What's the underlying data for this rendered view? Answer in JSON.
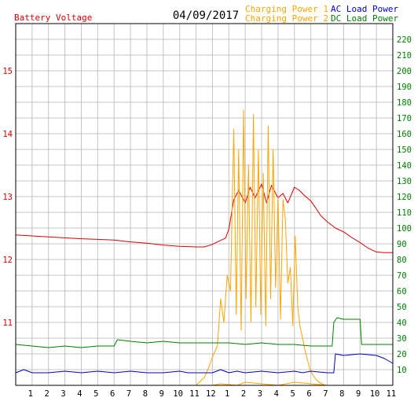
{
  "chart_data": {
    "type": "line",
    "title": "04/09/2017",
    "left_axis": {
      "label": "Battery Voltage",
      "color": "#dd0000",
      "range": [
        10.0,
        15.75
      ],
      "ticks": [
        11,
        12,
        13,
        14,
        15
      ]
    },
    "right_axis": {
      "color": "#008000",
      "range": [
        0,
        230
      ],
      "ticks": [
        10,
        20,
        30,
        40,
        50,
        60,
        70,
        80,
        90,
        100,
        110,
        120,
        130,
        140,
        150,
        160,
        170,
        180,
        190,
        200,
        210,
        220
      ]
    },
    "x_axis": {
      "range": [
        0,
        23
      ],
      "tick_labels": [
        "1",
        "2",
        "3",
        "4",
        "5",
        "6",
        "7",
        "8",
        "9",
        "10",
        "11",
        "12",
        "1",
        "2",
        "3",
        "4",
        "5",
        "6",
        "7",
        "8",
        "9",
        "10",
        "11"
      ]
    },
    "grid": true,
    "legend": [
      {
        "label": "Charging Power 1",
        "color": "#ffa500"
      },
      {
        "label": "AC Load Power",
        "color": "#0000cc"
      },
      {
        "label": "Charging Power 2",
        "color": "#ffa500"
      },
      {
        "label": "DC Load Power",
        "color": "#008000"
      }
    ],
    "series": [
      {
        "name": "Battery Voltage",
        "axis": "left",
        "color": "#dd0000",
        "x": [
          0,
          2,
          4,
          6,
          7,
          8,
          9,
          10,
          11,
          11.5,
          12,
          12.3,
          12.8,
          13,
          13.3,
          13.6,
          14,
          14.3,
          14.6,
          15,
          15.3,
          15.6,
          16,
          16.3,
          16.6,
          17,
          17.3,
          17.6,
          18,
          18.3,
          18.6,
          19,
          19.5,
          20,
          20.5,
          21,
          21.5,
          22,
          22.5,
          23
        ],
        "y": [
          12.39,
          12.36,
          12.33,
          12.31,
          12.28,
          12.26,
          12.23,
          12.21,
          12.2,
          12.2,
          12.24,
          12.28,
          12.34,
          12.48,
          12.95,
          13.1,
          12.9,
          13.15,
          12.98,
          13.2,
          12.9,
          13.18,
          12.98,
          13.05,
          12.9,
          13.15,
          13.1,
          13.02,
          12.93,
          12.82,
          12.7,
          12.6,
          12.5,
          12.44,
          12.35,
          12.27,
          12.18,
          12.12,
          12.11,
          12.11
        ]
      },
      {
        "name": "Charging Power 1",
        "axis": "right",
        "color": "#ffa500",
        "x": [
          0,
          11,
          11.2,
          11.5,
          11.8,
          12,
          12.3,
          12.5,
          12.7,
          12.9,
          13.1,
          13.3,
          13.45,
          13.6,
          13.75,
          13.9,
          14.05,
          14.2,
          14.35,
          14.5,
          14.65,
          14.8,
          14.95,
          15.1,
          15.25,
          15.4,
          15.55,
          15.7,
          15.85,
          16,
          16.15,
          16.3,
          16.45,
          16.6,
          16.75,
          16.9,
          17.05,
          17.2,
          17.35,
          17.5,
          17.65,
          17.8,
          17.95,
          18.1,
          18.3,
          18.5,
          18.7,
          18.9,
          19.1,
          19.3,
          23
        ],
        "y": [
          0,
          0,
          2,
          5,
          12,
          18,
          25,
          55,
          40,
          70,
          60,
          163,
          45,
          150,
          35,
          175,
          55,
          140,
          40,
          172,
          50,
          150,
          45,
          135,
          38,
          165,
          55,
          150,
          62,
          120,
          42,
          118,
          105,
          65,
          75,
          38,
          95,
          50,
          37,
          30,
          22,
          16,
          10,
          7,
          4,
          2,
          1,
          0,
          0,
          0,
          0
        ]
      },
      {
        "name": "Charging Power 2",
        "axis": "right",
        "color": "#ffa500",
        "x": [
          0,
          12,
          12.5,
          13.5,
          14,
          15,
          16,
          17,
          18,
          19,
          23
        ],
        "y": [
          0,
          0,
          1,
          0,
          2,
          1,
          0,
          2,
          1,
          0,
          0
        ]
      },
      {
        "name": "AC Load Power",
        "axis": "right",
        "color": "#0000cc",
        "x": [
          0,
          0.5,
          1,
          2,
          3,
          4,
          5,
          6,
          7,
          8,
          9,
          10,
          10.5,
          11,
          12,
          12.5,
          13,
          13.5,
          14,
          15,
          16,
          17,
          17.5,
          18,
          19,
          19.4,
          19.5,
          20,
          21,
          22,
          22.5,
          23
        ],
        "y": [
          8,
          10,
          8,
          8,
          9,
          8,
          9,
          8,
          9,
          8,
          8,
          9,
          8,
          8,
          8,
          10,
          8,
          9,
          8,
          9,
          8,
          9,
          8,
          9,
          8,
          8,
          20,
          19,
          20,
          19,
          17,
          14
        ]
      },
      {
        "name": "DC Load Power",
        "axis": "right",
        "color": "#008000",
        "x": [
          0,
          1,
          2,
          3,
          4,
          5,
          6,
          6.2,
          7,
          8,
          9,
          10,
          11,
          12,
          13,
          14,
          15,
          16,
          17,
          18,
          19,
          19.3,
          19.4,
          19.6,
          20,
          21,
          21.1,
          22,
          23
        ],
        "y": [
          26,
          25,
          24,
          25,
          24,
          25,
          25,
          29,
          28,
          27,
          28,
          27,
          27,
          27,
          27,
          26,
          27,
          26,
          26,
          25,
          25,
          25,
          40,
          43,
          42,
          42,
          26,
          26,
          26
        ]
      }
    ]
  }
}
